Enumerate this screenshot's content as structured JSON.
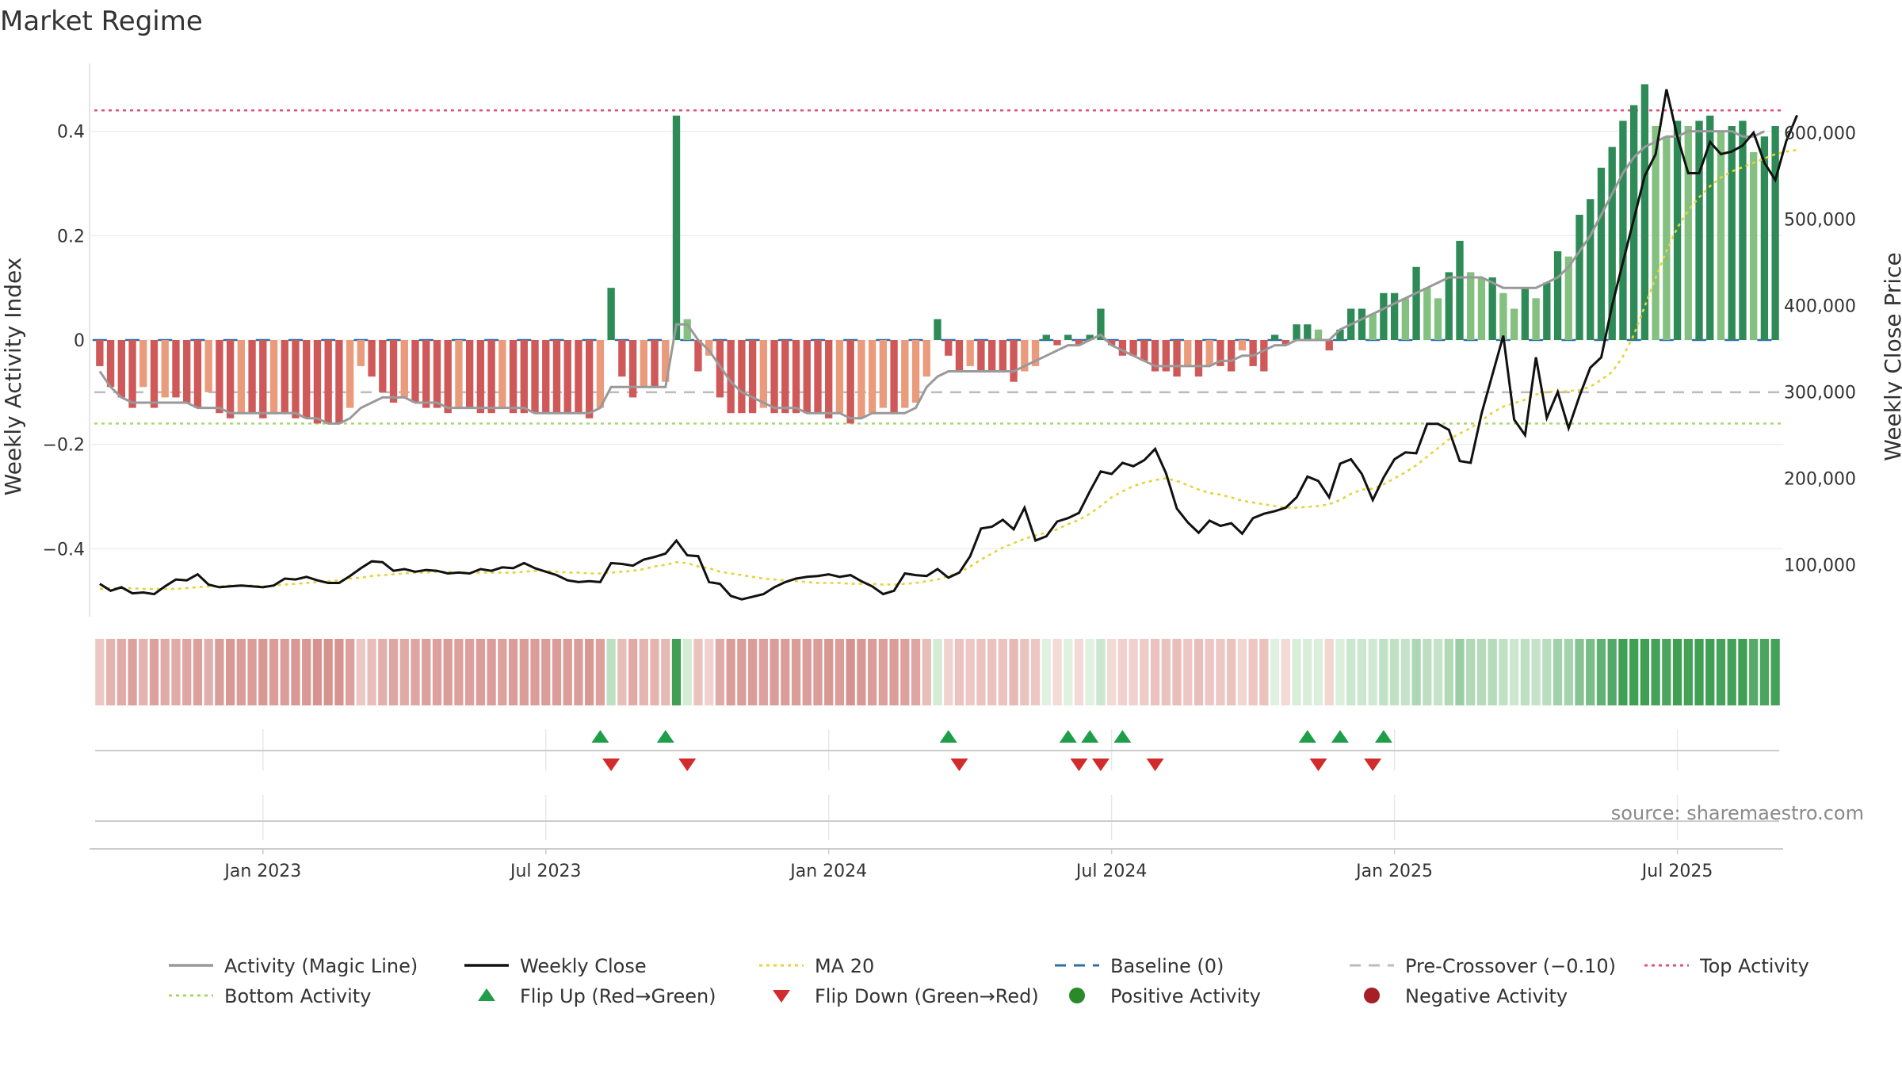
{
  "chart_data": {
    "type": "bar",
    "title": "Market Regime",
    "ylabel_left": "Weekly Activity Index",
    "ylabel_right": "Weekly Close Price",
    "source": "source: sharemaestro.com",
    "x_ticks": [
      "Jan 2023",
      "Jul 2023",
      "Jan 2024",
      "Jul 2024",
      "Jan 2025",
      "Jul 2025"
    ],
    "x_tick_weeks": [
      15,
      41,
      67,
      93,
      119,
      145
    ],
    "y_left_ticks": [
      0.4,
      0.2,
      0,
      -0.2,
      -0.4
    ],
    "y_left_tick_labels": [
      "0.4",
      "0.2",
      "0",
      "−0.2",
      "−0.4"
    ],
    "y_left_range": [
      -0.53,
      0.53
    ],
    "y_right_ticks": [
      100000,
      200000,
      300000,
      400000,
      500000,
      600000
    ],
    "y_right_tick_labels": [
      "100,000",
      "200,000",
      "300,000",
      "400,000",
      "500,000",
      "600,000"
    ],
    "y_right_range": [
      40000,
      680000
    ],
    "reference_lines": {
      "baseline": 0,
      "pre_crossover": -0.1,
      "top_activity": 0.44,
      "bottom_activity": -0.16
    },
    "activity_index": [
      -0.05,
      -0.09,
      -0.11,
      -0.13,
      -0.09,
      -0.13,
      -0.11,
      -0.11,
      -0.12,
      -0.13,
      -0.1,
      -0.14,
      -0.15,
      -0.14,
      -0.14,
      -0.15,
      -0.14,
      -0.14,
      -0.15,
      -0.15,
      -0.16,
      -0.16,
      -0.16,
      -0.13,
      -0.05,
      -0.07,
      -0.1,
      -0.12,
      -0.11,
      -0.12,
      -0.13,
      -0.13,
      -0.14,
      -0.13,
      -0.13,
      -0.14,
      -0.14,
      -0.13,
      -0.14,
      -0.14,
      -0.14,
      -0.14,
      -0.14,
      -0.14,
      -0.14,
      -0.15,
      -0.13,
      0.1,
      -0.07,
      -0.11,
      -0.09,
      -0.09,
      -0.08,
      0.43,
      0.04,
      -0.06,
      -0.03,
      -0.11,
      -0.14,
      -0.14,
      -0.14,
      -0.13,
      -0.14,
      -0.14,
      -0.14,
      -0.14,
      -0.14,
      -0.15,
      -0.14,
      -0.16,
      -0.15,
      -0.14,
      -0.13,
      -0.14,
      -0.13,
      -0.12,
      -0.07,
      0.04,
      -0.03,
      -0.06,
      -0.05,
      -0.06,
      -0.06,
      -0.06,
      -0.08,
      -0.06,
      -0.05,
      0.01,
      -0.01,
      0.01,
      -0.01,
      0.01,
      0.06,
      -0.01,
      -0.03,
      -0.03,
      -0.04,
      -0.06,
      -0.06,
      -0.07,
      -0.05,
      -0.07,
      -0.05,
      -0.05,
      -0.06,
      -0.02,
      -0.05,
      -0.06,
      0.01,
      -0.01,
      0.03,
      0.03,
      0.02,
      -0.02,
      0.02,
      0.06,
      0.06,
      0.05,
      0.09,
      0.09,
      0.08,
      0.14,
      0.1,
      0.08,
      0.13,
      0.19,
      0.13,
      0.12,
      0.12,
      0.09,
      0.06,
      0.1,
      0.08,
      0.11,
      0.17,
      0.16,
      0.24,
      0.27,
      0.33,
      0.37,
      0.42,
      0.45,
      0.49,
      0.41,
      0.39,
      0.42,
      0.41,
      0.42,
      0.43,
      0.4,
      0.41,
      0.42,
      0.36,
      0.39,
      0.41
    ],
    "magic_line": [
      -0.06,
      -0.09,
      -0.11,
      -0.12,
      -0.12,
      -0.12,
      -0.12,
      -0.12,
      -0.12,
      -0.13,
      -0.13,
      -0.13,
      -0.14,
      -0.14,
      -0.14,
      -0.14,
      -0.14,
      -0.14,
      -0.14,
      -0.15,
      -0.15,
      -0.16,
      -0.16,
      -0.15,
      -0.13,
      -0.12,
      -0.11,
      -0.11,
      -0.11,
      -0.12,
      -0.12,
      -0.12,
      -0.13,
      -0.13,
      -0.13,
      -0.13,
      -0.13,
      -0.13,
      -0.13,
      -0.13,
      -0.14,
      -0.14,
      -0.14,
      -0.14,
      -0.14,
      -0.14,
      -0.13,
      -0.09,
      -0.09,
      -0.09,
      -0.09,
      -0.09,
      -0.09,
      0.03,
      0.03,
      0.0,
      -0.02,
      -0.05,
      -0.08,
      -0.1,
      -0.11,
      -0.12,
      -0.13,
      -0.13,
      -0.13,
      -0.14,
      -0.14,
      -0.14,
      -0.14,
      -0.15,
      -0.15,
      -0.14,
      -0.14,
      -0.14,
      -0.14,
      -0.13,
      -0.09,
      -0.07,
      -0.06,
      -0.06,
      -0.06,
      -0.06,
      -0.06,
      -0.06,
      -0.06,
      -0.05,
      -0.04,
      -0.03,
      -0.02,
      -0.01,
      -0.01,
      0.0,
      0.01,
      -0.01,
      -0.02,
      -0.03,
      -0.04,
      -0.05,
      -0.05,
      -0.05,
      -0.05,
      -0.05,
      -0.05,
      -0.04,
      -0.04,
      -0.03,
      -0.03,
      -0.02,
      -0.01,
      -0.01,
      0.0,
      0.0,
      0.0,
      0.0,
      0.02,
      0.03,
      0.04,
      0.05,
      0.06,
      0.07,
      0.08,
      0.09,
      0.1,
      0.11,
      0.12,
      0.12,
      0.12,
      0.12,
      0.11,
      0.1,
      0.1,
      0.1,
      0.1,
      0.11,
      0.12,
      0.14,
      0.17,
      0.2,
      0.24,
      0.28,
      0.32,
      0.35,
      0.37,
      0.38,
      0.39,
      0.39,
      0.4,
      0.4,
      0.4,
      0.4,
      0.4,
      0.39,
      0.39,
      0.4
    ],
    "weekly_close": [
      78000,
      70000,
      74000,
      67000,
      68000,
      66000,
      75000,
      83000,
      82000,
      89000,
      77000,
      74000,
      75000,
      76000,
      75000,
      74000,
      76000,
      84000,
      83000,
      86000,
      82000,
      79000,
      79000,
      87000,
      96000,
      104000,
      103000,
      93000,
      95000,
      92000,
      94000,
      93000,
      90000,
      91000,
      90000,
      95000,
      93000,
      97000,
      96000,
      102000,
      96000,
      92000,
      88000,
      82000,
      80000,
      81000,
      80000,
      102000,
      101000,
      99000,
      106000,
      109000,
      113000,
      128000,
      111000,
      110000,
      80000,
      78000,
      64000,
      60000,
      63000,
      66000,
      74000,
      80000,
      84000,
      86000,
      87000,
      89000,
      86000,
      88000,
      81000,
      75000,
      66000,
      70000,
      90000,
      88000,
      87000,
      95000,
      85000,
      91000,
      110000,
      142000,
      144000,
      152000,
      141000,
      166000,
      128000,
      133000,
      150000,
      154000,
      160000,
      185000,
      208000,
      205000,
      218000,
      214000,
      221000,
      234000,
      206000,
      165000,
      149000,
      137000,
      151000,
      145000,
      148000,
      136000,
      154000,
      159000,
      162000,
      166000,
      178000,
      202000,
      197000,
      178000,
      217000,
      222000,
      205000,
      175000,
      201000,
      222000,
      230000,
      229000,
      263000,
      263000,
      256000,
      220000,
      218000,
      275000,
      320000,
      365000,
      268000,
      250000,
      340000,
      270000,
      300000,
      258000,
      295000,
      328000,
      340000,
      400000,
      450000,
      500000,
      550000,
      575000,
      650000,
      595000,
      553000,
      553000,
      589000,
      575000,
      578000,
      585000,
      600000,
      565000,
      545000,
      590000,
      620000
    ],
    "ma20": [
      72000,
      73000,
      73000,
      73000,
      72000,
      72000,
      72000,
      72000,
      73000,
      74000,
      75000,
      75000,
      76000,
      76000,
      76000,
      75000,
      76000,
      77000,
      78000,
      79000,
      80000,
      81000,
      82000,
      84000,
      85000,
      87000,
      88000,
      89000,
      90000,
      91000,
      91000,
      92000,
      92000,
      91000,
      91000,
      91000,
      91000,
      91000,
      91000,
      92000,
      93000,
      93000,
      92000,
      91000,
      91000,
      90000,
      90000,
      91000,
      92000,
      93000,
      95000,
      98000,
      100000,
      103000,
      102000,
      98000,
      96000,
      92000,
      90000,
      88000,
      86000,
      84000,
      83000,
      82000,
      81000,
      80000,
      79000,
      79000,
      79000,
      78000,
      78000,
      78000,
      77000,
      77000,
      78000,
      79000,
      81000,
      83000,
      87000,
      91000,
      98000,
      106000,
      113000,
      120000,
      125000,
      130000,
      134000,
      137000,
      141000,
      147000,
      152000,
      159000,
      168000,
      178000,
      185000,
      191000,
      195000,
      198000,
      200000,
      197000,
      192000,
      187000,
      183000,
      181000,
      178000,
      174000,
      172000,
      170000,
      168000,
      166000,
      166000,
      167000,
      168000,
      170000,
      175000,
      182000,
      187000,
      188000,
      193000,
      200000,
      207000,
      215000,
      225000,
      235000,
      245000,
      252000,
      258000,
      267000,
      276000,
      283000,
      287000,
      291000,
      297000,
      300000,
      300000,
      301000,
      302000,
      306000,
      314000,
      323000,
      341000,
      366000,
      399000,
      432000,
      463000,
      490000,
      510000,
      525000,
      538000,
      548000,
      555000,
      560000,
      565000,
      570000,
      575000,
      578000,
      580000
    ],
    "flips_up": [
      46,
      52,
      78,
      89,
      91,
      94,
      111,
      114,
      118
    ],
    "flips_down": [
      47,
      54,
      79,
      90,
      92,
      97,
      112,
      117
    ]
  },
  "legend": [
    {
      "label": "Activity (Magic Line)",
      "style": "solid",
      "color": "#999999"
    },
    {
      "label": "Weekly Close",
      "style": "solid",
      "color": "#111111"
    },
    {
      "label": "MA 20",
      "style": "dotted",
      "color": "#e8d23a"
    },
    {
      "label": "Baseline (0)",
      "style": "dashed",
      "color": "#2e6ea6"
    },
    {
      "label": "Pre-Crossover (−0.10)",
      "style": "dashed",
      "color": "#bbbbbb"
    },
    {
      "label": "Top Activity",
      "style": "dotted",
      "color": "#e0507a"
    },
    {
      "label": "Bottom Activity",
      "style": "dotted",
      "color": "#a5d86a"
    },
    {
      "label": "Flip Up (Red→Green)",
      "style": "triangle-up",
      "color": "#1e9e48"
    },
    {
      "label": "Flip Down (Green→Red)",
      "style": "triangle-down",
      "color": "#d22b2b"
    },
    {
      "label": "Positive Activity",
      "style": "circle",
      "color": "#2a8a2a"
    },
    {
      "label": "Negative Activity",
      "style": "circle",
      "color": "#a51f24"
    }
  ],
  "colors": {
    "pos_strong": "#2e8b57",
    "pos_light": "#84c080",
    "neg_strong": "#cf5858",
    "neg_light": "#e99b7c",
    "magic_line": "#999999",
    "close": "#111111",
    "ma20": "#e8d23a",
    "baseline": "#2e6ea6",
    "pre_crossover": "#bbbbbb",
    "top_activity": "#e0507a",
    "bottom_activity": "#a5d86a",
    "flip_up": "#1e9e48",
    "flip_down": "#d22b2b",
    "grid": "#e8e8e8"
  }
}
